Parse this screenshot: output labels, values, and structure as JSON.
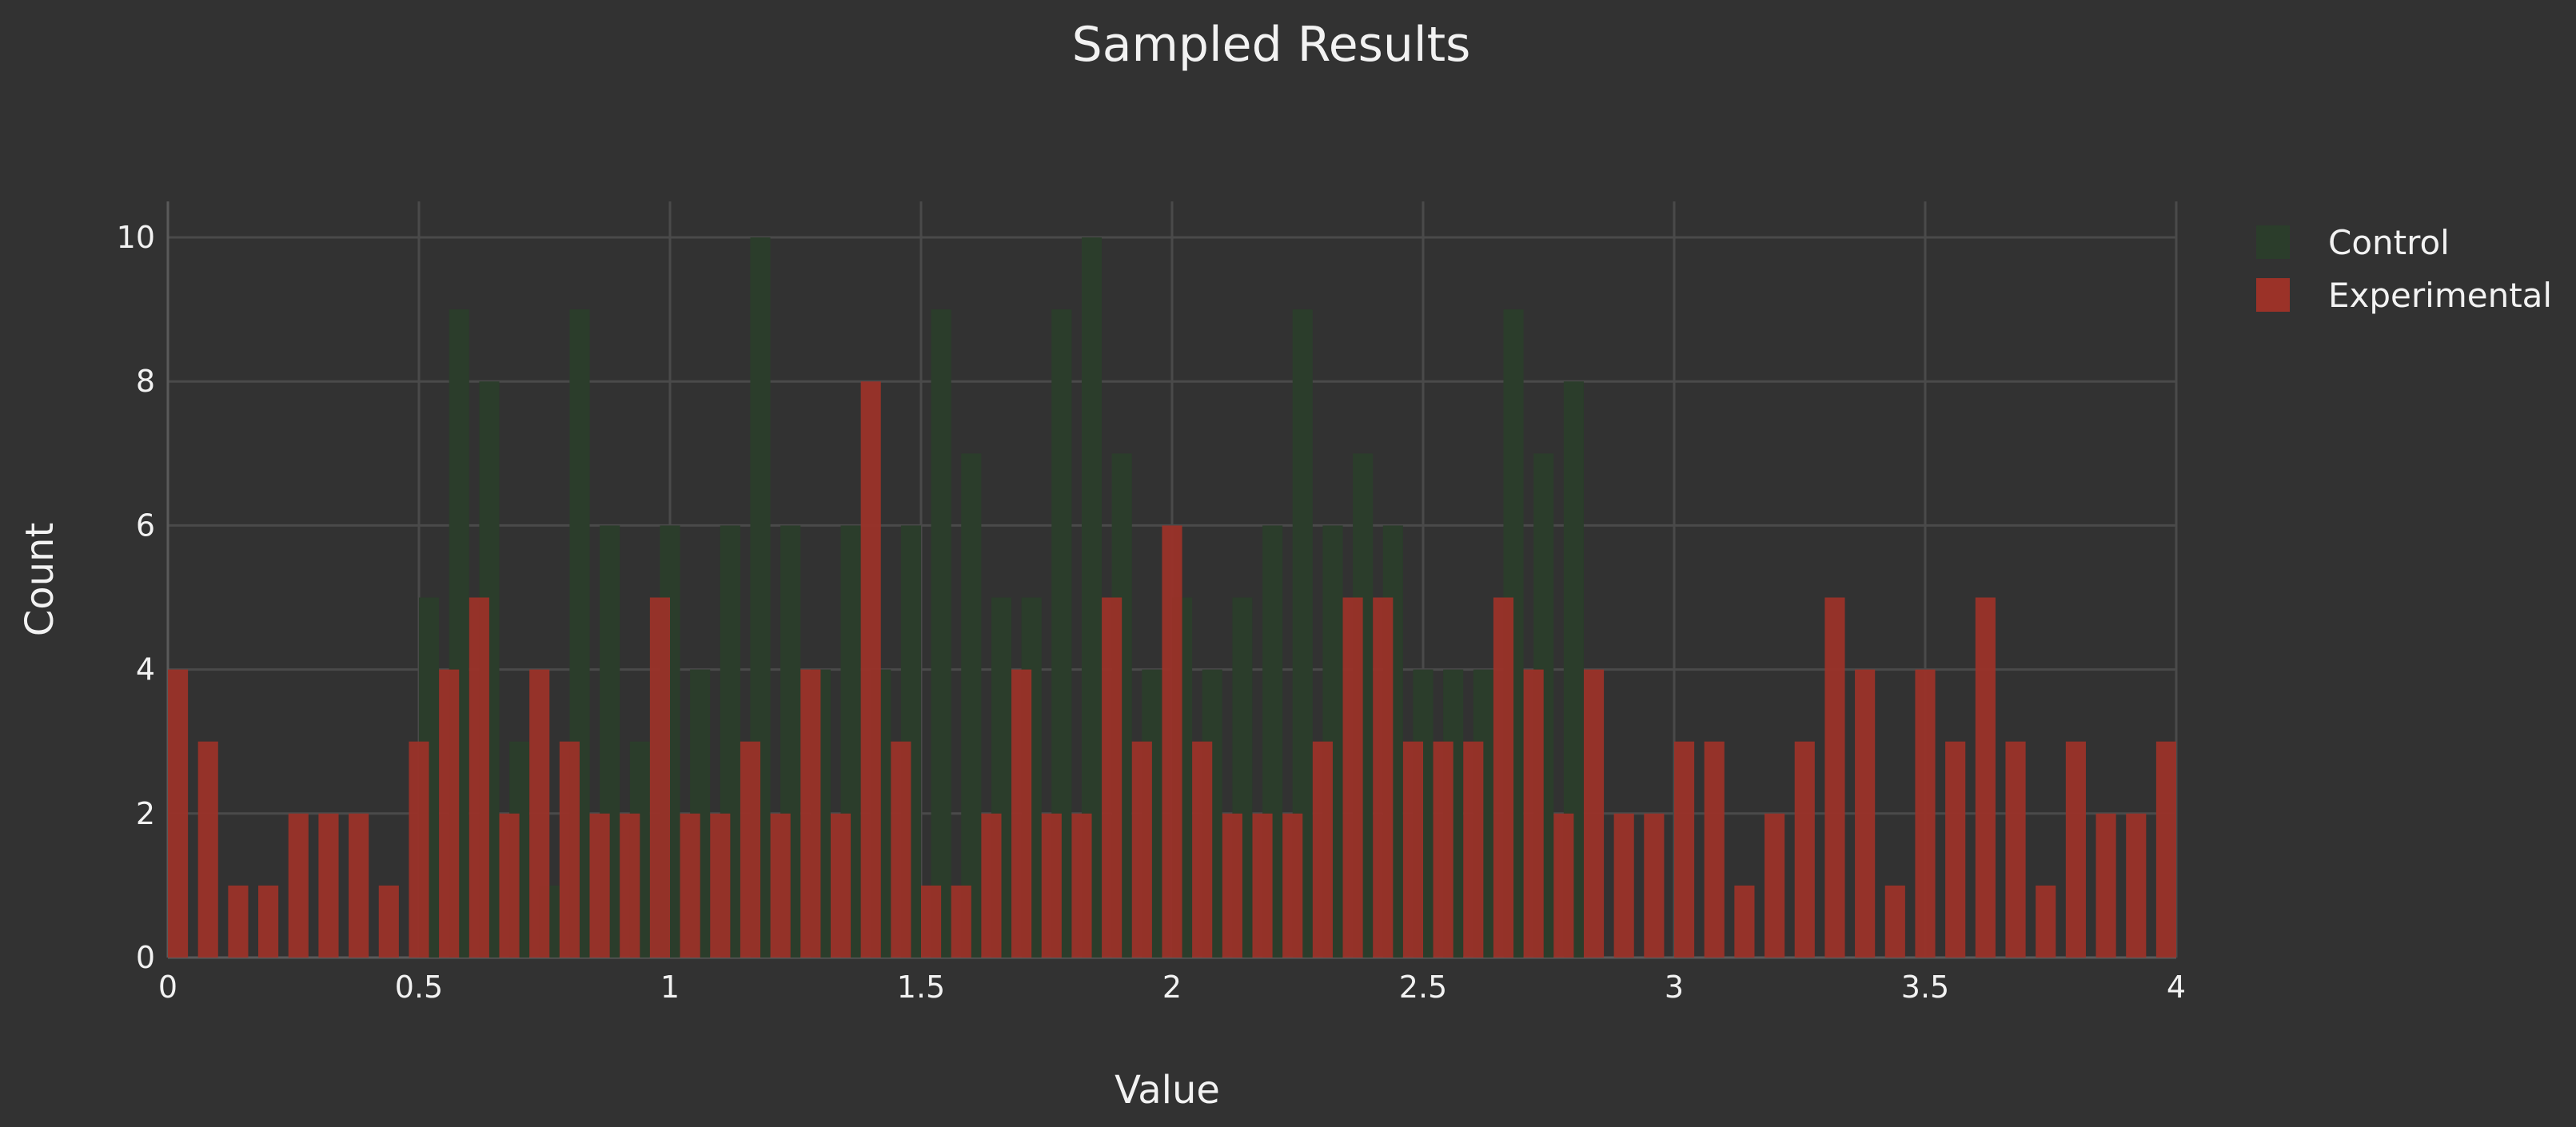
{
  "chart_data": {
    "type": "bar",
    "title": "Sampled Results",
    "xlabel": "Value",
    "ylabel": "Count",
    "barmode": "overlay",
    "bin_width": 0.04,
    "xlim": [
      0,
      4
    ],
    "ylim": [
      0,
      10.5
    ],
    "x_ticks": [
      {
        "value": 0,
        "label": "0"
      },
      {
        "value": 0.5,
        "label": "0.5"
      },
      {
        "value": 1,
        "label": "1"
      },
      {
        "value": 1.5,
        "label": "1.5"
      },
      {
        "value": 2,
        "label": "2"
      },
      {
        "value": 2.5,
        "label": "2.5"
      },
      {
        "value": 3,
        "label": "3"
      },
      {
        "value": 3.5,
        "label": "3.5"
      },
      {
        "value": 4,
        "label": "4"
      }
    ],
    "y_ticks": [
      {
        "value": 0,
        "label": "0"
      },
      {
        "value": 2,
        "label": "2"
      },
      {
        "value": 4,
        "label": "4"
      },
      {
        "value": 6,
        "label": "6"
      },
      {
        "value": 8,
        "label": "8"
      },
      {
        "value": 10,
        "label": "10"
      }
    ],
    "grid": true,
    "legend_position": "top-right",
    "series": [
      {
        "name": "Control",
        "color": "#2b3d2b",
        "bins": [
          [
            0.5,
            5
          ],
          [
            0.56,
            9
          ],
          [
            0.62,
            8
          ],
          [
            0.68,
            3
          ],
          [
            0.74,
            1
          ],
          [
            0.8,
            9
          ],
          [
            0.86,
            6
          ],
          [
            0.92,
            3
          ],
          [
            0.98,
            6
          ],
          [
            1.04,
            4
          ],
          [
            1.1,
            6
          ],
          [
            1.16,
            10
          ],
          [
            1.22,
            6
          ],
          [
            1.28,
            4
          ],
          [
            1.34,
            6
          ],
          [
            1.4,
            4
          ],
          [
            1.46,
            6
          ],
          [
            1.52,
            9
          ],
          [
            1.58,
            7
          ],
          [
            1.64,
            5
          ],
          [
            1.7,
            5
          ],
          [
            1.76,
            9
          ],
          [
            1.82,
            10
          ],
          [
            1.88,
            7
          ],
          [
            1.94,
            4
          ],
          [
            2.0,
            5
          ],
          [
            2.06,
            4
          ],
          [
            2.12,
            5
          ],
          [
            2.18,
            6
          ],
          [
            2.24,
            9
          ],
          [
            2.3,
            6
          ],
          [
            2.36,
            7
          ],
          [
            2.42,
            6
          ],
          [
            2.48,
            4
          ],
          [
            2.54,
            4
          ],
          [
            2.6,
            4
          ],
          [
            2.66,
            9
          ],
          [
            2.72,
            7
          ],
          [
            2.78,
            8
          ]
        ]
      },
      {
        "name": "Experimental",
        "color": "#9b3228",
        "bins": [
          [
            0.0,
            4
          ],
          [
            0.06,
            3
          ],
          [
            0.12,
            1
          ],
          [
            0.18,
            1
          ],
          [
            0.24,
            2
          ],
          [
            0.3,
            2
          ],
          [
            0.36,
            2
          ],
          [
            0.42,
            1
          ],
          [
            0.48,
            3
          ],
          [
            0.54,
            4
          ],
          [
            0.6,
            5
          ],
          [
            0.66,
            2
          ],
          [
            0.72,
            4
          ],
          [
            0.78,
            3
          ],
          [
            0.84,
            2
          ],
          [
            0.9,
            2
          ],
          [
            0.96,
            5
          ],
          [
            1.02,
            2
          ],
          [
            1.08,
            2
          ],
          [
            1.14,
            3
          ],
          [
            1.2,
            2
          ],
          [
            1.26,
            4
          ],
          [
            1.32,
            2
          ],
          [
            1.38,
            8
          ],
          [
            1.44,
            3
          ],
          [
            1.5,
            1
          ],
          [
            1.56,
            1
          ],
          [
            1.62,
            2
          ],
          [
            1.68,
            4
          ],
          [
            1.74,
            2
          ],
          [
            1.8,
            2
          ],
          [
            1.86,
            5
          ],
          [
            1.92,
            3
          ],
          [
            1.98,
            6
          ],
          [
            2.04,
            3
          ],
          [
            2.1,
            2
          ],
          [
            2.16,
            2
          ],
          [
            2.22,
            2
          ],
          [
            2.28,
            3
          ],
          [
            2.34,
            5
          ],
          [
            2.4,
            5
          ],
          [
            2.46,
            3
          ],
          [
            2.52,
            3
          ],
          [
            2.58,
            3
          ],
          [
            2.64,
            5
          ],
          [
            2.7,
            4
          ],
          [
            2.76,
            2
          ],
          [
            2.82,
            4
          ],
          [
            2.88,
            2
          ],
          [
            2.94,
            2
          ],
          [
            3.0,
            3
          ],
          [
            3.06,
            3
          ],
          [
            3.12,
            1
          ],
          [
            3.18,
            2
          ],
          [
            3.24,
            3
          ],
          [
            3.3,
            5
          ],
          [
            3.36,
            4
          ],
          [
            3.42,
            1
          ],
          [
            3.48,
            4
          ],
          [
            3.54,
            3
          ],
          [
            3.6,
            5
          ],
          [
            3.66,
            3
          ],
          [
            3.72,
            1
          ],
          [
            3.78,
            3
          ],
          [
            3.84,
            2
          ],
          [
            3.9,
            2
          ],
          [
            3.96,
            3
          ]
        ]
      }
    ]
  }
}
